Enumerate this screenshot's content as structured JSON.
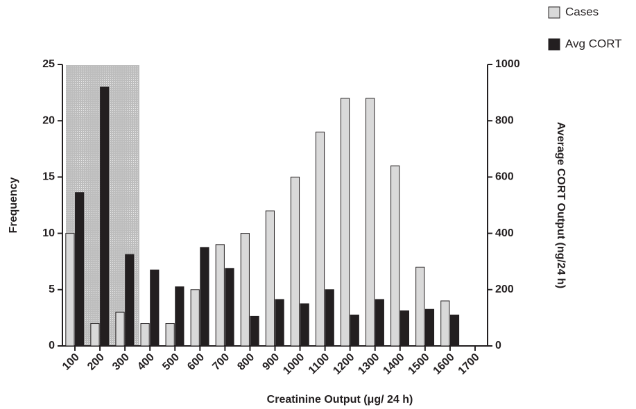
{
  "chart_data": {
    "type": "bar",
    "x_label": "Creatinine Output (μg/ 24 h)",
    "y_label": "Frequency",
    "y2_label": "Average CORT Output (ng/24 h)",
    "categories": [
      "100",
      "200",
      "300",
      "400",
      "500",
      "600",
      "700",
      "800",
      "900",
      "1000",
      "1100",
      "1200",
      "1300",
      "1400",
      "1500",
      "1600",
      "1700"
    ],
    "series": [
      {
        "name": "Cases",
        "color": "#d9d9d9",
        "values": [
          10,
          2,
          3,
          2,
          2,
          5,
          9,
          10,
          12,
          15,
          19,
          22,
          22,
          16,
          7,
          4,
          null
        ]
      },
      {
        "name": "Avg CORT",
        "color": "#231f20",
        "axis": "y2",
        "values": [
          545,
          920,
          325,
          270,
          210,
          350,
          275,
          105,
          165,
          150,
          200,
          110,
          165,
          125,
          130,
          110,
          null
        ]
      }
    ],
    "ylim": [
      0,
      25
    ],
    "yticks": [
      0,
      5,
      10,
      15,
      20,
      25
    ],
    "y2lim": [
      0,
      1000
    ],
    "y2ticks": [
      0,
      200,
      400,
      600,
      800,
      1000
    ],
    "legend": "top-right"
  }
}
